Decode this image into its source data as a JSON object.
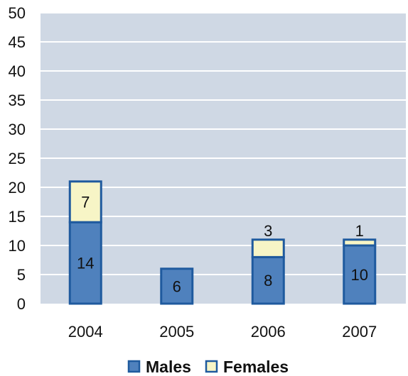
{
  "chart_data": {
    "type": "bar",
    "stacked": true,
    "categories": [
      "2004",
      "2005",
      "2006",
      "2007"
    ],
    "series": [
      {
        "name": "Males",
        "values": [
          14,
          6,
          8,
          10
        ],
        "color": "#4f81bd",
        "stroke": "#1f5a9e"
      },
      {
        "name": "Females",
        "values": [
          7,
          0,
          3,
          1
        ],
        "color": "#f7f5c6",
        "stroke": "#1f5a9e"
      }
    ],
    "data_labels": {
      "Males": [
        "14",
        "6",
        "8",
        "10"
      ],
      "Females": [
        "7",
        null,
        "3",
        "1"
      ]
    },
    "ylim": [
      0,
      50
    ],
    "yticks": [
      0,
      5,
      10,
      15,
      20,
      25,
      30,
      35,
      40,
      45,
      50
    ],
    "grid": true,
    "plot_background": "#cfd8e4",
    "legend_position": "bottom"
  }
}
